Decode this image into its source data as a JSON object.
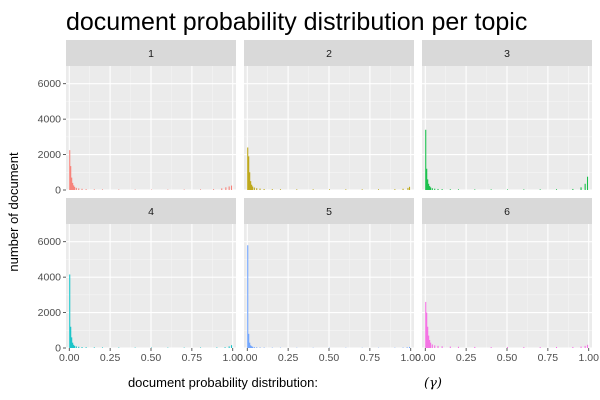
{
  "chart_data": {
    "type": "histogram",
    "title": "document probability distribution per topic",
    "xlabel": "document probability distribution:",
    "xlabel_symbol": "(γ)",
    "ylabel": "number of document",
    "xlim": [
      -0.02,
      1.02
    ],
    "ylim": [
      0,
      7000
    ],
    "x_ticks": [
      0,
      0.25,
      0.5,
      0.75,
      1
    ],
    "x_tick_labels": [
      "0.00",
      "0.25",
      "0.50",
      "0.75",
      "1.00"
    ],
    "y_ticks": [
      0,
      2000,
      4000,
      6000
    ],
    "y_tick_labels": [
      "0",
      "2000",
      "4000",
      "6000"
    ],
    "grid": true,
    "facet_layout": {
      "rows": 2,
      "cols": 3
    },
    "facets": [
      {
        "label": "1",
        "color": "#F8766D",
        "bins": [
          [
            0.0,
            2250
          ],
          [
            0.006,
            1350
          ],
          [
            0.012,
            700
          ],
          [
            0.018,
            400
          ],
          [
            0.024,
            260
          ],
          [
            0.03,
            180
          ],
          [
            0.04,
            120
          ],
          [
            0.055,
            90
          ],
          [
            0.075,
            70
          ],
          [
            0.1,
            45
          ],
          [
            0.15,
            35
          ],
          [
            0.2,
            30
          ],
          [
            0.3,
            25
          ],
          [
            0.4,
            22
          ],
          [
            0.5,
            20
          ],
          [
            0.6,
            22
          ],
          [
            0.7,
            25
          ],
          [
            0.8,
            30
          ],
          [
            0.88,
            45
          ],
          [
            0.93,
            90
          ],
          [
            0.955,
            150
          ],
          [
            0.975,
            200
          ],
          [
            0.99,
            250
          ]
        ]
      },
      {
        "label": "2",
        "color": "#B79F00",
        "bins": [
          [
            0.0,
            2400
          ],
          [
            0.006,
            1900
          ],
          [
            0.012,
            1000
          ],
          [
            0.018,
            500
          ],
          [
            0.024,
            300
          ],
          [
            0.03,
            200
          ],
          [
            0.04,
            140
          ],
          [
            0.055,
            100
          ],
          [
            0.075,
            80
          ],
          [
            0.1,
            55
          ],
          [
            0.15,
            45
          ],
          [
            0.2,
            40
          ],
          [
            0.3,
            35
          ],
          [
            0.4,
            35
          ],
          [
            0.5,
            35
          ],
          [
            0.6,
            35
          ],
          [
            0.7,
            35
          ],
          [
            0.8,
            40
          ],
          [
            0.9,
            45
          ],
          [
            0.95,
            70
          ],
          [
            0.98,
            120
          ],
          [
            0.99,
            180
          ]
        ]
      },
      {
        "label": "3",
        "color": "#00BA38",
        "bins": [
          [
            0.0,
            3400
          ],
          [
            0.006,
            1200
          ],
          [
            0.012,
            600
          ],
          [
            0.018,
            350
          ],
          [
            0.024,
            220
          ],
          [
            0.03,
            150
          ],
          [
            0.04,
            100
          ],
          [
            0.055,
            75
          ],
          [
            0.075,
            60
          ],
          [
            0.1,
            50
          ],
          [
            0.15,
            40
          ],
          [
            0.2,
            35
          ],
          [
            0.3,
            30
          ],
          [
            0.4,
            30
          ],
          [
            0.5,
            30
          ],
          [
            0.6,
            30
          ],
          [
            0.7,
            35
          ],
          [
            0.8,
            40
          ],
          [
            0.9,
            60
          ],
          [
            0.95,
            150
          ],
          [
            0.975,
            350
          ],
          [
            0.99,
            750
          ]
        ]
      },
      {
        "label": "4",
        "color": "#00BFC4",
        "bins": [
          [
            0.0,
            4150
          ],
          [
            0.006,
            1200
          ],
          [
            0.012,
            600
          ],
          [
            0.018,
            300
          ],
          [
            0.024,
            180
          ],
          [
            0.03,
            120
          ],
          [
            0.04,
            90
          ],
          [
            0.055,
            70
          ],
          [
            0.075,
            55
          ],
          [
            0.1,
            45
          ],
          [
            0.15,
            35
          ],
          [
            0.2,
            30
          ],
          [
            0.3,
            25
          ],
          [
            0.4,
            22
          ],
          [
            0.5,
            22
          ],
          [
            0.6,
            22
          ],
          [
            0.7,
            22
          ],
          [
            0.8,
            25
          ],
          [
            0.9,
            30
          ],
          [
            0.95,
            45
          ],
          [
            0.975,
            90
          ],
          [
            0.99,
            160
          ]
        ]
      },
      {
        "label": "5",
        "color": "#619CFF",
        "bins": [
          [
            0.0,
            5800
          ],
          [
            0.006,
            800
          ],
          [
            0.012,
            300
          ],
          [
            0.018,
            150
          ],
          [
            0.024,
            100
          ],
          [
            0.03,
            70
          ],
          [
            0.04,
            50
          ],
          [
            0.055,
            40
          ],
          [
            0.075,
            30
          ],
          [
            0.1,
            25
          ],
          [
            0.15,
            20
          ],
          [
            0.2,
            18
          ],
          [
            0.3,
            15
          ],
          [
            0.4,
            15
          ],
          [
            0.5,
            15
          ],
          [
            0.6,
            15
          ],
          [
            0.7,
            15
          ],
          [
            0.8,
            15
          ],
          [
            0.9,
            18
          ],
          [
            0.95,
            25
          ],
          [
            0.975,
            40
          ],
          [
            0.99,
            60
          ]
        ]
      },
      {
        "label": "6",
        "color": "#F564E3",
        "bins": [
          [
            0.0,
            2600
          ],
          [
            0.006,
            2000
          ],
          [
            0.012,
            1200
          ],
          [
            0.018,
            700
          ],
          [
            0.024,
            450
          ],
          [
            0.03,
            300
          ],
          [
            0.04,
            200
          ],
          [
            0.055,
            150
          ],
          [
            0.075,
            120
          ],
          [
            0.1,
            100
          ],
          [
            0.15,
            80
          ],
          [
            0.2,
            70
          ],
          [
            0.3,
            60
          ],
          [
            0.4,
            50
          ],
          [
            0.5,
            50
          ],
          [
            0.6,
            50
          ],
          [
            0.7,
            50
          ],
          [
            0.8,
            55
          ],
          [
            0.9,
            60
          ],
          [
            0.95,
            80
          ],
          [
            0.975,
            120
          ],
          [
            0.99,
            180
          ]
        ]
      }
    ]
  }
}
